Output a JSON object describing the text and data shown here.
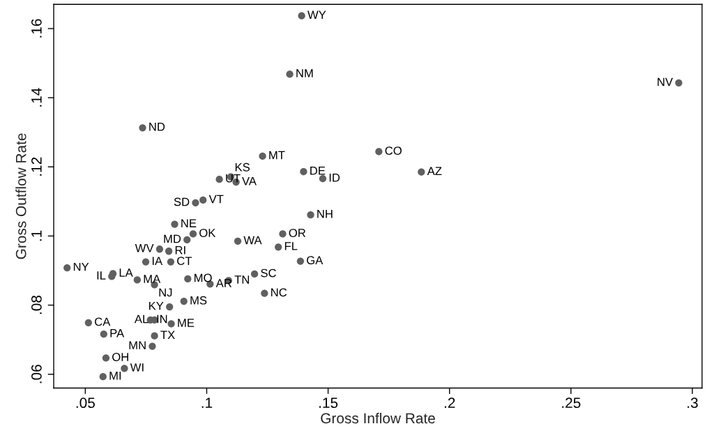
{
  "chart_data": {
    "type": "scatter",
    "xlabel": "Gross Inflow Rate",
    "ylabel": "Gross Outflow Rate",
    "x": [
      0.1391,
      0.1342,
      0.2944,
      0.0736,
      0.1709,
      0.1884,
      0.1399,
      0.1478,
      0.1428,
      0.1313,
      0.1295,
      0.1386,
      0.123,
      0.1052,
      0.1099,
      0.1121,
      0.0985,
      0.0954,
      0.0868,
      0.0944,
      0.0919,
      0.1128,
      0.0806,
      0.0844,
      0.0749,
      0.0852,
      0.0425,
      0.0614,
      0.0609,
      0.0714,
      0.0785,
      0.0922,
      0.1014,
      0.109,
      0.1197,
      0.1238,
      0.0906,
      0.0847,
      0.0768,
      0.0785,
      0.0854,
      0.0513,
      0.0576,
      0.0785,
      0.0776,
      0.0585,
      0.0661,
      0.0573
    ],
    "series": [
      {
        "color": "#606060",
        "values": [
          0.1637,
          0.1468,
          0.1443,
          0.1313,
          0.1244,
          0.1185,
          0.1186,
          0.1166,
          0.1061,
          0.1006,
          0.0968,
          0.0927,
          0.1231,
          0.1164,
          0.1171,
          0.1156,
          0.1104,
          0.1096,
          0.1034,
          0.1006,
          0.0989,
          0.0985,
          0.0962,
          0.0956,
          0.0925,
          0.0925,
          0.0908,
          0.0891,
          0.0883,
          0.0873,
          0.0859,
          0.0876,
          0.0861,
          0.0871,
          0.089,
          0.0834,
          0.0811,
          0.0795,
          0.0757,
          0.0757,
          0.0746,
          0.0749,
          0.0716,
          0.0711,
          0.0681,
          0.0647,
          0.0617,
          0.0593
        ]
      }
    ],
    "annotations": [
      {
        "text": "WY",
        "x": 0.1391,
        "y": 0.1637
      },
      {
        "text": "NM",
        "x": 0.1342,
        "y": 0.1468
      },
      {
        "text": "NV",
        "x": 0.2944,
        "y": 0.1443
      },
      {
        "text": "ND",
        "x": 0.0736,
        "y": 0.1313
      },
      {
        "text": "CO",
        "x": 0.1709,
        "y": 0.1244
      },
      {
        "text": "AZ",
        "x": 0.1884,
        "y": 0.1185
      },
      {
        "text": "DE",
        "x": 0.1399,
        "y": 0.1186
      },
      {
        "text": "ID",
        "x": 0.1478,
        "y": 0.1166
      },
      {
        "text": "NH",
        "x": 0.1428,
        "y": 0.1061
      },
      {
        "text": "OR",
        "x": 0.1313,
        "y": 0.1006
      },
      {
        "text": "FL",
        "x": 0.1295,
        "y": 0.0968
      },
      {
        "text": "GA",
        "x": 0.1386,
        "y": 0.0927
      },
      {
        "text": "MT",
        "x": 0.123,
        "y": 0.1231
      },
      {
        "text": "UT",
        "x": 0.1052,
        "y": 0.1164
      },
      {
        "text": "KS",
        "x": 0.1099,
        "y": 0.1171
      },
      {
        "text": "VA",
        "x": 0.1121,
        "y": 0.1156
      },
      {
        "text": "VT",
        "x": 0.0985,
        "y": 0.1104
      },
      {
        "text": "SD",
        "x": 0.0954,
        "y": 0.1096
      },
      {
        "text": "NE",
        "x": 0.0868,
        "y": 0.1034
      },
      {
        "text": "OK",
        "x": 0.0944,
        "y": 0.1006
      },
      {
        "text": "MD",
        "x": 0.0919,
        "y": 0.0989
      },
      {
        "text": "WA",
        "x": 0.1128,
        "y": 0.0985
      },
      {
        "text": "WV",
        "x": 0.0806,
        "y": 0.0962
      },
      {
        "text": "RI",
        "x": 0.0844,
        "y": 0.0956
      },
      {
        "text": "IA",
        "x": 0.0749,
        "y": 0.0925
      },
      {
        "text": "CT",
        "x": 0.0852,
        "y": 0.0925
      },
      {
        "text": "NY",
        "x": 0.0425,
        "y": 0.0908
      },
      {
        "text": "LA",
        "x": 0.0614,
        "y": 0.0891
      },
      {
        "text": "IL",
        "x": 0.0609,
        "y": 0.0883
      },
      {
        "text": "MA",
        "x": 0.0714,
        "y": 0.0873
      },
      {
        "text": "NJ",
        "x": 0.0785,
        "y": 0.0859
      },
      {
        "text": "MO",
        "x": 0.0922,
        "y": 0.0876
      },
      {
        "text": "AR",
        "x": 0.1014,
        "y": 0.0861
      },
      {
        "text": "TN",
        "x": 0.109,
        "y": 0.0871
      },
      {
        "text": "SC",
        "x": 0.1197,
        "y": 0.089
      },
      {
        "text": "NC",
        "x": 0.1238,
        "y": 0.0834
      },
      {
        "text": "MS",
        "x": 0.0906,
        "y": 0.0811
      },
      {
        "text": "KY",
        "x": 0.0847,
        "y": 0.0795
      },
      {
        "text": "IN",
        "x": 0.0768,
        "y": 0.0757
      },
      {
        "text": "AL",
        "x": 0.0785,
        "y": 0.0757
      },
      {
        "text": "ME",
        "x": 0.0854,
        "y": 0.0746
      },
      {
        "text": "CA",
        "x": 0.0513,
        "y": 0.0749
      },
      {
        "text": "PA",
        "x": 0.0576,
        "y": 0.0716
      },
      {
        "text": "TX",
        "x": 0.0785,
        "y": 0.0711
      },
      {
        "text": "MN",
        "x": 0.0776,
        "y": 0.0681
      },
      {
        "text": "OH",
        "x": 0.0585,
        "y": 0.0647
      },
      {
        "text": "WI",
        "x": 0.0661,
        "y": 0.0617
      },
      {
        "text": "MI",
        "x": 0.0573,
        "y": 0.0593
      }
    ],
    "xlim": [
      0.037,
      0.304
    ],
    "ylim": [
      0.056,
      0.167
    ],
    "xticks": [
      {
        "value": 0.05,
        "label": ".05"
      },
      {
        "value": 0.1,
        "label": ".1"
      },
      {
        "value": 0.15,
        "label": ".15"
      },
      {
        "value": 0.2,
        "label": ".2"
      },
      {
        "value": 0.25,
        "label": ".25"
      },
      {
        "value": 0.3,
        "label": ".3"
      }
    ],
    "yticks": [
      {
        "value": 0.06,
        "label": ".06"
      },
      {
        "value": 0.08,
        "label": ".08"
      },
      {
        "value": 0.1,
        "label": ".1"
      },
      {
        "value": 0.12,
        "label": ".12"
      },
      {
        "value": 0.14,
        "label": ".14"
      },
      {
        "value": 0.16,
        "label": ".16"
      }
    ],
    "grid": false,
    "marker": "circle"
  }
}
